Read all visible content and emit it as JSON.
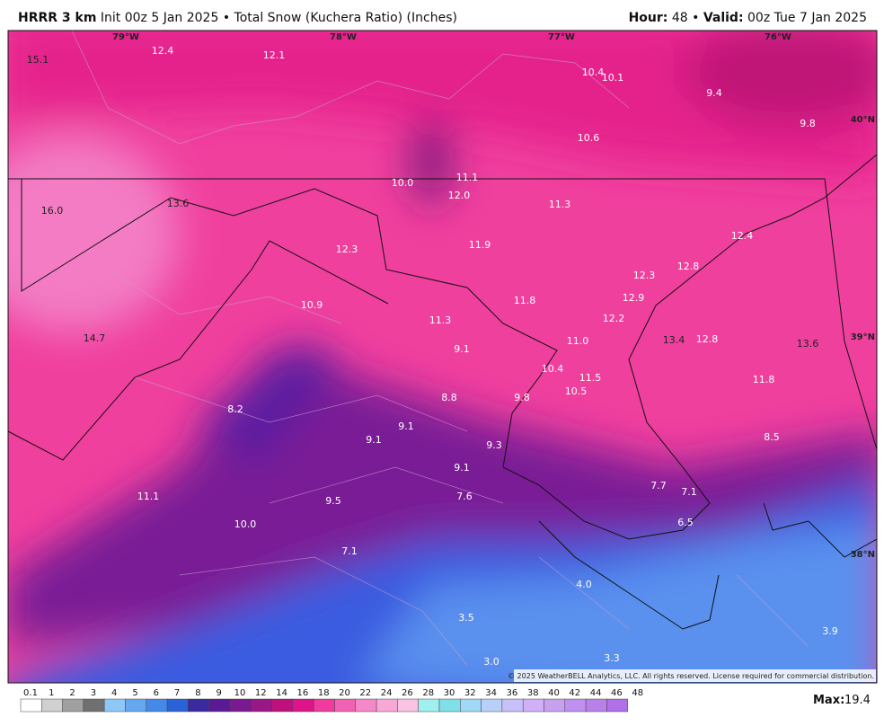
{
  "header": {
    "model": "HRRR 3 km",
    "description": "Init 00z 5 Jan 2025 • Total Snow (Kuchera Ratio) (Inches)",
    "hour_label": "Hour:",
    "hour_value": "48 •",
    "valid_label": "Valid:",
    "valid_value": "00z Tue 7 Jan 2025"
  },
  "map": {
    "lon_labels": [
      "79°W",
      "78°W",
      "77°W",
      "76°W"
    ],
    "lat_labels": [
      "40°N",
      "39°N",
      "38°N"
    ],
    "values": [
      "15.1",
      "12.4",
      "12.1",
      "10.4",
      "10.1",
      "9.4",
      "9.8",
      "10.6",
      "10.0",
      "11.1",
      "12.0",
      "11.3",
      "16.0",
      "13.6",
      "12.3",
      "11.9",
      "12.4",
      "12.3",
      "12.8",
      "12.9",
      "11.8",
      "10.9",
      "11.3",
      "12.2",
      "14.7",
      "9.1",
      "11.0",
      "13.4",
      "12.8",
      "13.6",
      "10.4",
      "11.5",
      "10.5",
      "11.8",
      "8.8",
      "9.8",
      "8.2",
      "9.1",
      "9.1",
      "8.5",
      "9.3",
      "9.1",
      "7.7",
      "7.1",
      "11.1",
      "7.6",
      "9.5",
      "10.0",
      "6.5",
      "7.1",
      "4.0",
      "3.5",
      "3.9",
      "3.3",
      "3.0"
    ],
    "copyright": "© 2025 WeatherBELL Analytics, LLC. All rights reserved. License required for commercial distribution."
  },
  "colorbar": {
    "ticks": [
      "0.1",
      "1",
      "2",
      "3",
      "4",
      "5",
      "6",
      "7",
      "8",
      "9",
      "10",
      "12",
      "14",
      "16",
      "18",
      "20",
      "22",
      "24",
      "26",
      "28",
      "30",
      "32",
      "34",
      "36",
      "38",
      "40",
      "42",
      "44",
      "46",
      "48"
    ]
  },
  "max": {
    "label": "Max:",
    "value": "19.4"
  }
}
